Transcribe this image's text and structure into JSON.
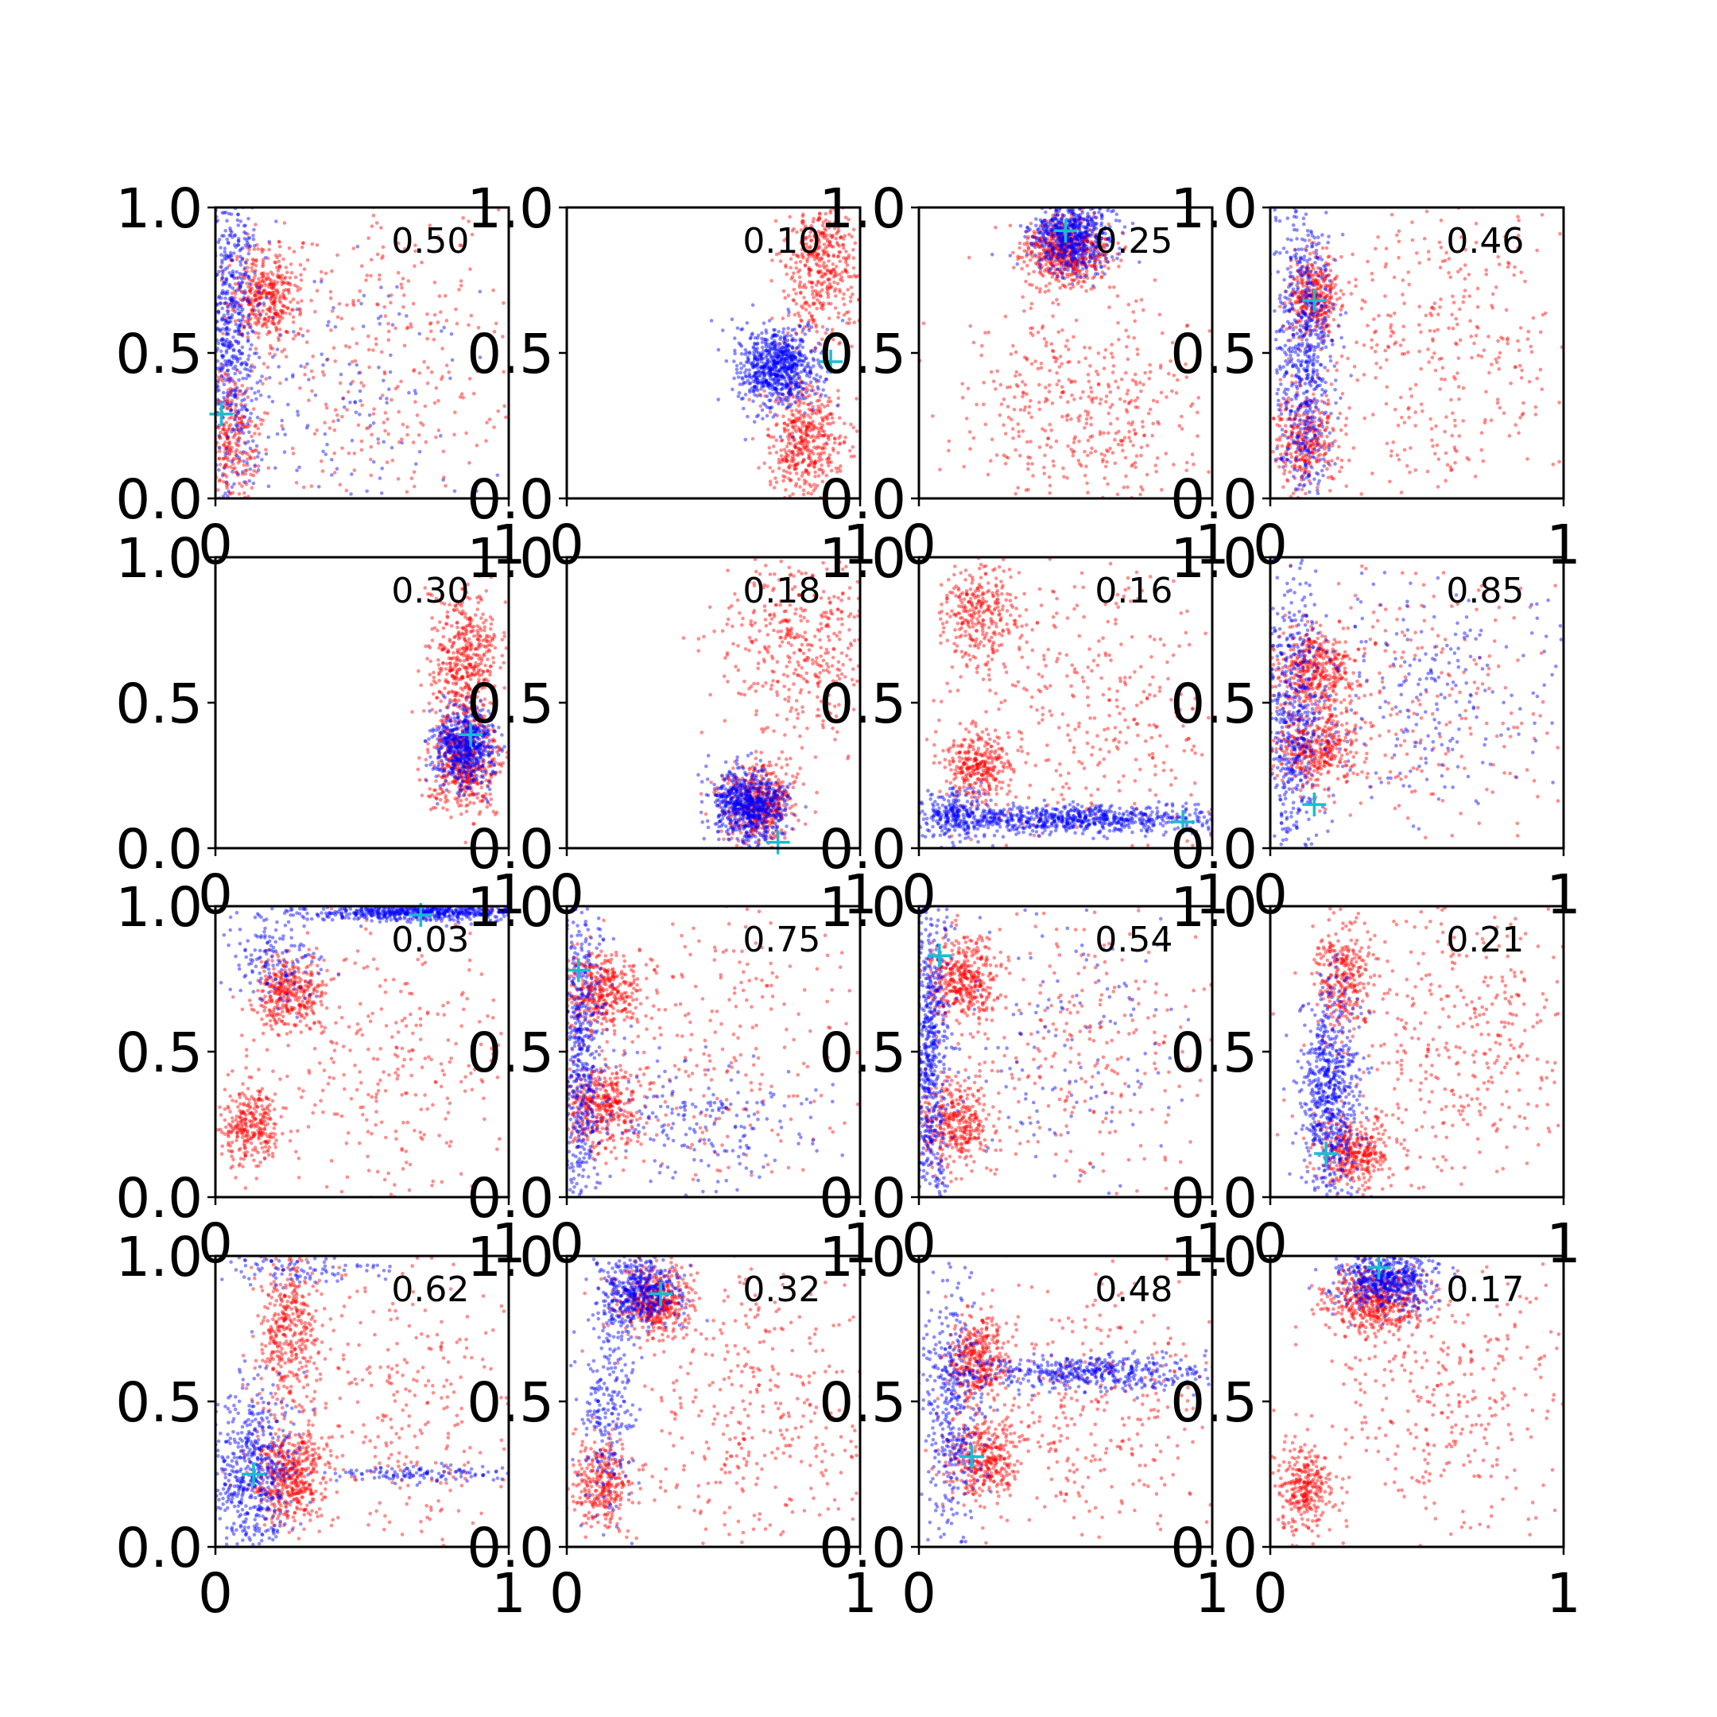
{
  "figure": {
    "rows": 4,
    "cols": 4,
    "colors": {
      "red_points": "#ff0000",
      "blue_points": "#0000ff",
      "marker": "#17becf",
      "axes": "#000000",
      "background": "#ffffff"
    }
  },
  "chart_data": [
    {
      "type": "scatter",
      "annotation": "0.50",
      "xlim": [
        0,
        1
      ],
      "ylim": [
        0,
        1
      ],
      "xticks": [
        "0",
        "1"
      ],
      "yticks": [
        "0.0",
        "0.5",
        "1.0"
      ],
      "marker": [
        0.02,
        0.29
      ],
      "series": [
        {
          "color": "#ff0000",
          "clusters": [
            [
              0.17,
              0.7,
              0.06,
              0.08,
              380
            ],
            [
              0.05,
              0.2,
              0.05,
              0.12,
              300
            ],
            [
              0.55,
              0.5,
              0.25,
              0.3,
              350
            ]
          ]
        },
        {
          "color": "#0000ff",
          "clusters": [
            [
              0.05,
              0.6,
              0.05,
              0.3,
              650
            ],
            [
              0.4,
              0.35,
              0.25,
              0.25,
              150
            ]
          ]
        }
      ]
    },
    {
      "type": "scatter",
      "annotation": "0.10",
      "xlim": [
        0,
        1
      ],
      "ylim": [
        0,
        1
      ],
      "xticks": [
        "0",
        "1"
      ],
      "yticks": [
        "0.0",
        "0.5",
        "1.0"
      ],
      "marker": [
        0.9,
        0.47
      ],
      "series": [
        {
          "color": "#ff0000",
          "clusters": [
            [
              0.82,
              0.2,
              0.07,
              0.1,
              450
            ],
            [
              0.87,
              0.8,
              0.07,
              0.12,
              450
            ]
          ]
        },
        {
          "color": "#0000ff",
          "clusters": [
            [
              0.72,
              0.45,
              0.07,
              0.07,
              750
            ]
          ]
        }
      ]
    },
    {
      "type": "scatter",
      "annotation": "0.25",
      "xlim": [
        0,
        1
      ],
      "ylim": [
        0,
        1
      ],
      "xticks": [
        "0",
        "1"
      ],
      "yticks": [
        "0.0",
        "0.5",
        "1.0"
      ],
      "marker": [
        0.5,
        0.92
      ],
      "series": [
        {
          "color": "#ff0000",
          "clusters": [
            [
              0.5,
              0.85,
              0.07,
              0.06,
              600
            ],
            [
              0.55,
              0.3,
              0.22,
              0.18,
              450
            ]
          ]
        },
        {
          "color": "#0000ff",
          "clusters": [
            [
              0.52,
              0.9,
              0.07,
              0.06,
              600
            ]
          ]
        }
      ]
    },
    {
      "type": "scatter",
      "annotation": "0.46",
      "xlim": [
        0,
        1
      ],
      "ylim": [
        0,
        1
      ],
      "xticks": [
        "0",
        "1"
      ],
      "yticks": [
        "0.0",
        "0.5",
        "1.0"
      ],
      "marker": [
        0.15,
        0.68
      ],
      "series": [
        {
          "color": "#ff0000",
          "clusters": [
            [
              0.15,
              0.7,
              0.04,
              0.07,
              350
            ],
            [
              0.12,
              0.2,
              0.05,
              0.08,
              300
            ],
            [
              0.55,
              0.5,
              0.25,
              0.3,
              400
            ]
          ]
        },
        {
          "color": "#0000ff",
          "clusters": [
            [
              0.12,
              0.5,
              0.05,
              0.28,
              700
            ]
          ]
        }
      ]
    },
    {
      "type": "scatter",
      "annotation": "0.30",
      "xlim": [
        0,
        1
      ],
      "ylim": [
        0,
        1
      ],
      "xticks": [
        "0",
        "1"
      ],
      "yticks": [
        "0.0",
        "0.5",
        "1.0"
      ],
      "marker": [
        0.87,
        0.39
      ],
      "series": [
        {
          "color": "#ff0000",
          "clusters": [
            [
              0.85,
              0.3,
              0.06,
              0.09,
              500
            ],
            [
              0.85,
              0.65,
              0.06,
              0.12,
              450
            ]
          ]
        },
        {
          "color": "#0000ff",
          "clusters": [
            [
              0.85,
              0.35,
              0.05,
              0.07,
              600
            ]
          ]
        }
      ]
    },
    {
      "type": "scatter",
      "annotation": "0.18",
      "xlim": [
        0,
        1
      ],
      "ylim": [
        0,
        1
      ],
      "xticks": [
        "0",
        "1"
      ],
      "yticks": [
        "0.0",
        "0.5",
        "1.0"
      ],
      "marker": [
        0.72,
        0.02
      ],
      "series": [
        {
          "color": "#ff0000",
          "clusters": [
            [
              0.65,
              0.15,
              0.06,
              0.07,
              500
            ],
            [
              0.82,
              0.7,
              0.14,
              0.18,
              450
            ]
          ]
        },
        {
          "color": "#0000ff",
          "clusters": [
            [
              0.62,
              0.15,
              0.06,
              0.06,
              700
            ]
          ]
        }
      ]
    },
    {
      "type": "scatter",
      "annotation": "0.16",
      "xlim": [
        0,
        1
      ],
      "ylim": [
        0,
        1
      ],
      "xticks": [
        "0",
        "1"
      ],
      "yticks": [
        "0.0",
        "0.5",
        "1.0"
      ],
      "marker": [
        0.9,
        0.09
      ],
      "series": [
        {
          "color": "#ff0000",
          "clusters": [
            [
              0.2,
              0.8,
              0.06,
              0.09,
              300
            ],
            [
              0.2,
              0.28,
              0.06,
              0.06,
              300
            ],
            [
              0.6,
              0.45,
              0.25,
              0.28,
              400
            ]
          ]
        },
        {
          "color": "#0000ff",
          "clusters": [
            [
              0.5,
              0.1,
              0.3,
              0.025,
              800
            ],
            [
              0.12,
              0.12,
              0.06,
              0.05,
              200
            ]
          ]
        }
      ]
    },
    {
      "type": "scatter",
      "annotation": "0.85",
      "xlim": [
        0,
        1
      ],
      "ylim": [
        0,
        1
      ],
      "xticks": [
        "0",
        "1"
      ],
      "yticks": [
        "0.0",
        "0.5",
        "1.0"
      ],
      "marker": [
        0.15,
        0.15
      ],
      "series": [
        {
          "color": "#ff0000",
          "clusters": [
            [
              0.15,
              0.62,
              0.07,
              0.07,
              400
            ],
            [
              0.15,
              0.35,
              0.07,
              0.07,
              400
            ],
            [
              0.5,
              0.5,
              0.25,
              0.25,
              250
            ]
          ]
        },
        {
          "color": "#0000ff",
          "clusters": [
            [
              0.08,
              0.45,
              0.05,
              0.25,
              500
            ],
            [
              0.5,
              0.5,
              0.25,
              0.2,
              250
            ]
          ]
        }
      ]
    },
    {
      "type": "scatter",
      "annotation": "0.03",
      "xlim": [
        0,
        1
      ],
      "ylim": [
        0,
        1
      ],
      "xticks": [
        "0",
        "1"
      ],
      "yticks": [
        "0.0",
        "0.5",
        "1.0"
      ],
      "marker": [
        0.7,
        0.97
      ],
      "series": [
        {
          "color": "#ff0000",
          "clusters": [
            [
              0.25,
              0.7,
              0.06,
              0.07,
              350
            ],
            [
              0.12,
              0.25,
              0.05,
              0.07,
              300
            ],
            [
              0.6,
              0.45,
              0.22,
              0.25,
              300
            ]
          ]
        },
        {
          "color": "#0000ff",
          "clusters": [
            [
              0.7,
              0.98,
              0.2,
              0.015,
              650
            ],
            [
              0.2,
              0.82,
              0.08,
              0.08,
              150
            ]
          ]
        }
      ]
    },
    {
      "type": "scatter",
      "annotation": "0.75",
      "xlim": [
        0,
        1
      ],
      "ylim": [
        0,
        1
      ],
      "xticks": [
        "0",
        "1"
      ],
      "yticks": [
        "0.0",
        "0.5",
        "1.0"
      ],
      "marker": [
        0.04,
        0.78
      ],
      "series": [
        {
          "color": "#ff0000",
          "clusters": [
            [
              0.12,
              0.7,
              0.07,
              0.07,
              400
            ],
            [
              0.12,
              0.3,
              0.07,
              0.07,
              400
            ],
            [
              0.55,
              0.5,
              0.25,
              0.25,
              250
            ]
          ]
        },
        {
          "color": "#0000ff",
          "clusters": [
            [
              0.05,
              0.5,
              0.04,
              0.28,
              550
            ],
            [
              0.45,
              0.25,
              0.2,
              0.1,
              200
            ]
          ]
        }
      ]
    },
    {
      "type": "scatter",
      "annotation": "0.54",
      "xlim": [
        0,
        1
      ],
      "ylim": [
        0,
        1
      ],
      "xticks": [
        "0",
        "1"
      ],
      "yticks": [
        "0.0",
        "0.5",
        "1.0"
      ],
      "marker": [
        0.07,
        0.83
      ],
      "series": [
        {
          "color": "#ff0000",
          "clusters": [
            [
              0.15,
              0.75,
              0.06,
              0.07,
              400
            ],
            [
              0.12,
              0.25,
              0.06,
              0.08,
              350
            ],
            [
              0.55,
              0.5,
              0.25,
              0.25,
              300
            ]
          ]
        },
        {
          "color": "#0000ff",
          "clusters": [
            [
              0.04,
              0.5,
              0.03,
              0.28,
              600
            ],
            [
              0.5,
              0.5,
              0.25,
              0.25,
              150
            ]
          ]
        }
      ]
    },
    {
      "type": "scatter",
      "annotation": "0.21",
      "xlim": [
        0,
        1
      ],
      "ylim": [
        0,
        1
      ],
      "xticks": [
        "0",
        "1"
      ],
      "yticks": [
        "0.0",
        "0.5",
        "1.0"
      ],
      "marker": [
        0.19,
        0.15
      ],
      "series": [
        {
          "color": "#ff0000",
          "clusters": [
            [
              0.28,
              0.15,
              0.06,
              0.06,
              350
            ],
            [
              0.25,
              0.75,
              0.05,
              0.1,
              300
            ],
            [
              0.65,
              0.55,
              0.25,
              0.28,
              450
            ]
          ]
        },
        {
          "color": "#0000ff",
          "clusters": [
            [
              0.2,
              0.35,
              0.05,
              0.18,
              650
            ]
          ]
        }
      ]
    },
    {
      "type": "scatter",
      "annotation": "0.62",
      "xlim": [
        0,
        1
      ],
      "ylim": [
        0,
        1
      ],
      "xticks": [
        "0",
        "1"
      ],
      "yticks": [
        "0.0",
        "0.5",
        "1.0"
      ],
      "marker": [
        0.13,
        0.25
      ],
      "series": [
        {
          "color": "#ff0000",
          "clusters": [
            [
              0.25,
              0.25,
              0.06,
              0.08,
              450
            ],
            [
              0.25,
              0.75,
              0.05,
              0.12,
              350
            ],
            [
              0.6,
              0.45,
              0.25,
              0.28,
              350
            ]
          ]
        },
        {
          "color": "#0000ff",
          "clusters": [
            [
              0.12,
              0.25,
              0.07,
              0.15,
              550
            ],
            [
              0.7,
              0.25,
              0.18,
              0.015,
              120
            ],
            [
              0.3,
              0.95,
              0.15,
              0.03,
              100
            ]
          ]
        }
      ]
    },
    {
      "type": "scatter",
      "annotation": "0.32",
      "xlim": [
        0,
        1
      ],
      "ylim": [
        0,
        1
      ],
      "xticks": [
        "0",
        "1"
      ],
      "yticks": [
        "0.0",
        "0.5",
        "1.0"
      ],
      "marker": [
        0.32,
        0.87
      ],
      "series": [
        {
          "color": "#ff0000",
          "clusters": [
            [
              0.3,
              0.85,
              0.06,
              0.06,
              450
            ],
            [
              0.12,
              0.22,
              0.05,
              0.08,
              300
            ],
            [
              0.65,
              0.45,
              0.22,
              0.28,
              400
            ]
          ]
        },
        {
          "color": "#0000ff",
          "clusters": [
            [
              0.25,
              0.88,
              0.07,
              0.06,
              450
            ],
            [
              0.14,
              0.5,
              0.05,
              0.18,
              250
            ]
          ]
        }
      ]
    },
    {
      "type": "scatter",
      "annotation": "0.48",
      "xlim": [
        0,
        1
      ],
      "ylim": [
        0,
        1
      ],
      "xticks": [
        "0",
        "1"
      ],
      "yticks": [
        "0.0",
        "0.5",
        "1.0"
      ],
      "marker": [
        0.18,
        0.31
      ],
      "series": [
        {
          "color": "#ff0000",
          "clusters": [
            [
              0.2,
              0.65,
              0.05,
              0.07,
              350
            ],
            [
              0.22,
              0.3,
              0.06,
              0.07,
              350
            ],
            [
              0.6,
              0.5,
              0.22,
              0.25,
              350
            ]
          ]
        },
        {
          "color": "#0000ff",
          "clusters": [
            [
              0.6,
              0.6,
              0.2,
              0.03,
              450
            ],
            [
              0.12,
              0.45,
              0.05,
              0.25,
              400
            ]
          ]
        }
      ]
    },
    {
      "type": "scatter",
      "annotation": "0.17",
      "xlim": [
        0,
        1
      ],
      "ylim": [
        0,
        1
      ],
      "xticks": [
        "0",
        "1"
      ],
      "yticks": [
        "0.0",
        "0.5",
        "1.0"
      ],
      "marker": [
        0.37,
        0.96
      ],
      "series": [
        {
          "color": "#ff0000",
          "clusters": [
            [
              0.35,
              0.85,
              0.08,
              0.06,
              500
            ],
            [
              0.12,
              0.2,
              0.05,
              0.08,
              300
            ],
            [
              0.6,
              0.5,
              0.22,
              0.25,
              350
            ]
          ]
        },
        {
          "color": "#0000ff",
          "clusters": [
            [
              0.4,
              0.92,
              0.08,
              0.05,
              550
            ]
          ]
        }
      ]
    }
  ]
}
